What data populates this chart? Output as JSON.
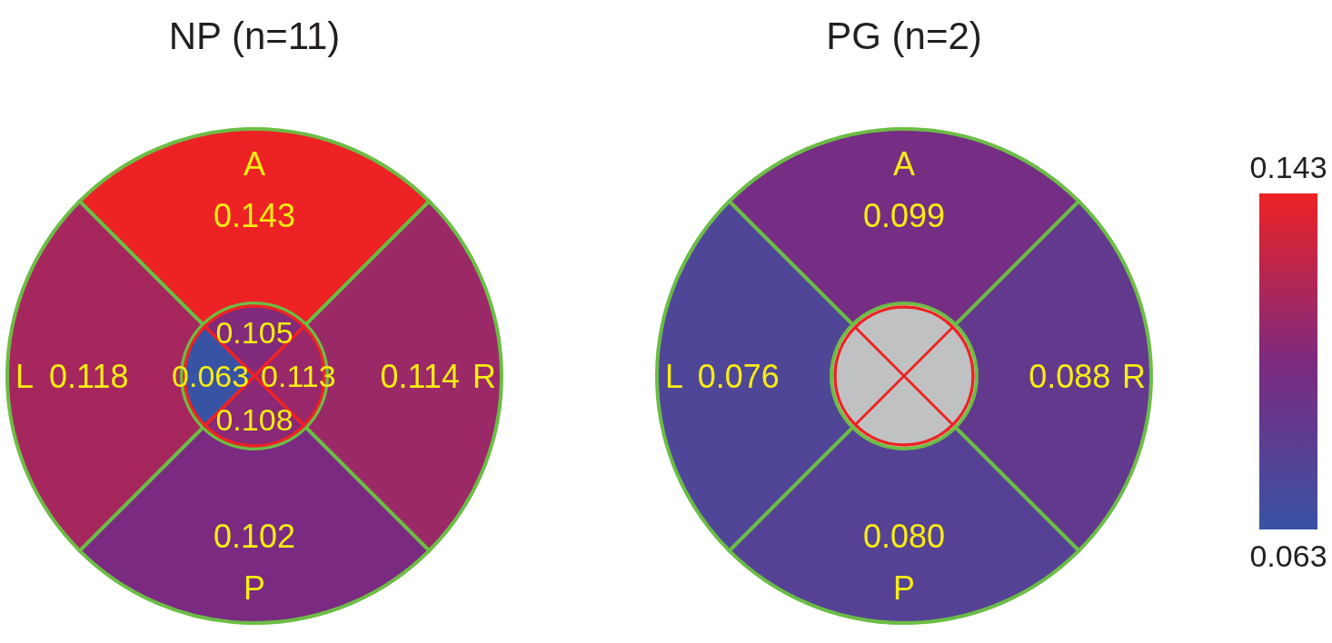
{
  "chart_data": [
    {
      "type": "other",
      "title": "NP (n=11)",
      "categories": [
        "A",
        "R",
        "P",
        "L"
      ],
      "data_labels": true,
      "series": [
        {
          "values": [
            0.143,
            0.114,
            0.102,
            0.118
          ],
          "colors": [
            "#ed2224",
            "#9b2867",
            "#7a2b81",
            "#a6275e"
          ]
        },
        {
          "values": [
            0.105,
            0.113,
            0.108,
            0.063
          ],
          "colors": [
            "#822a7b",
            "#982869",
            "#8a2975",
            "#3953a4"
          ]
        }
      ]
    },
    {
      "type": "other",
      "title": "PG (n=2)",
      "categories": [
        "A",
        "R",
        "P",
        "L"
      ],
      "series": [
        {
          "values": [
            0.099,
            0.088,
            0.08,
            0.076
          ],
          "value_labels": [
            "0.099",
            "0.088",
            "0.080",
            "0.076"
          ],
          "colors": [
            "#752e84",
            "#63398e",
            "#554295",
            "#4f4698"
          ]
        }
      ],
      "annotations": [
        "0.143",
        "0.063"
      ]
    }
  ]
}
